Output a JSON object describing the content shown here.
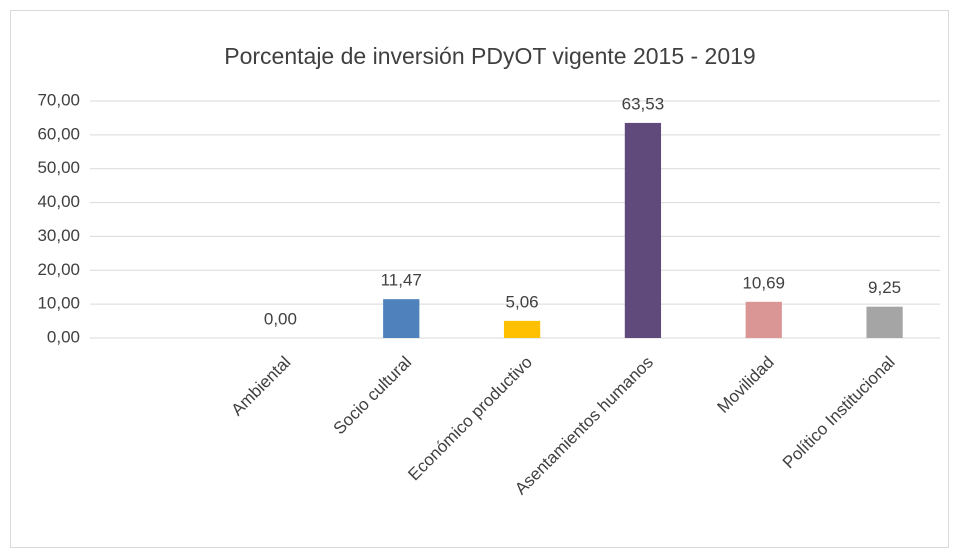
{
  "chart_data": {
    "type": "bar",
    "title": "Porcentaje de inversión PDyOT vigente 2015 - 2019",
    "categories": [
      "Ambiental",
      "Socio cultural",
      "Económico productivo",
      "Asentamientos humanos",
      "Movilidad",
      "Político Institucional"
    ],
    "values": [
      0,
      11.47,
      5.06,
      63.53,
      10.69,
      9.25
    ],
    "value_labels": [
      "0,00",
      "11,47",
      "5,06",
      "63,53",
      "10,69",
      "9,25"
    ],
    "colors": [
      "#70ad47",
      "#4f81bd",
      "#ffc000",
      "#604a7b",
      "#d99694",
      "#a5a5a5"
    ],
    "ylim": [
      0,
      70
    ],
    "yticks": [
      {
        "value": 0,
        "label": "0,00"
      },
      {
        "value": 10,
        "label": "10,00"
      },
      {
        "value": 20,
        "label": "20,00"
      },
      {
        "value": 30,
        "label": "30,00"
      },
      {
        "value": 40,
        "label": "40,00"
      },
      {
        "value": 50,
        "label": "50,00"
      },
      {
        "value": 60,
        "label": "60,00"
      },
      {
        "value": 70,
        "label": "70,00"
      }
    ],
    "grid": true
  }
}
